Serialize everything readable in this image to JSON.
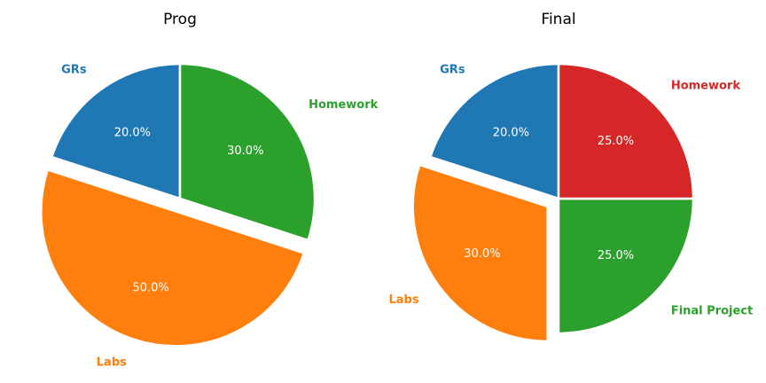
{
  "chart_data": [
    {
      "type": "pie",
      "title": "Prog",
      "categories": [
        "GRs",
        "Labs",
        "Homework"
      ],
      "values": [
        20,
        50,
        30
      ],
      "percent_labels": [
        "20.0%",
        "50.0%",
        "30.0%"
      ],
      "colors": [
        "#1f77b4",
        "#ff7f0e",
        "#2ca02c"
      ],
      "exploded": [
        "Labs"
      ]
    },
    {
      "type": "pie",
      "title": "Final",
      "categories": [
        "GRs",
        "Labs",
        "Final Project",
        "Homework"
      ],
      "values": [
        20,
        30,
        25,
        25
      ],
      "percent_labels": [
        "20.0%",
        "30.0%",
        "25.0%",
        "25.0%"
      ],
      "colors": [
        "#1f77b4",
        "#ff7f0e",
        "#2ca02c",
        "#d62728"
      ],
      "exploded": [
        "Labs"
      ]
    }
  ]
}
